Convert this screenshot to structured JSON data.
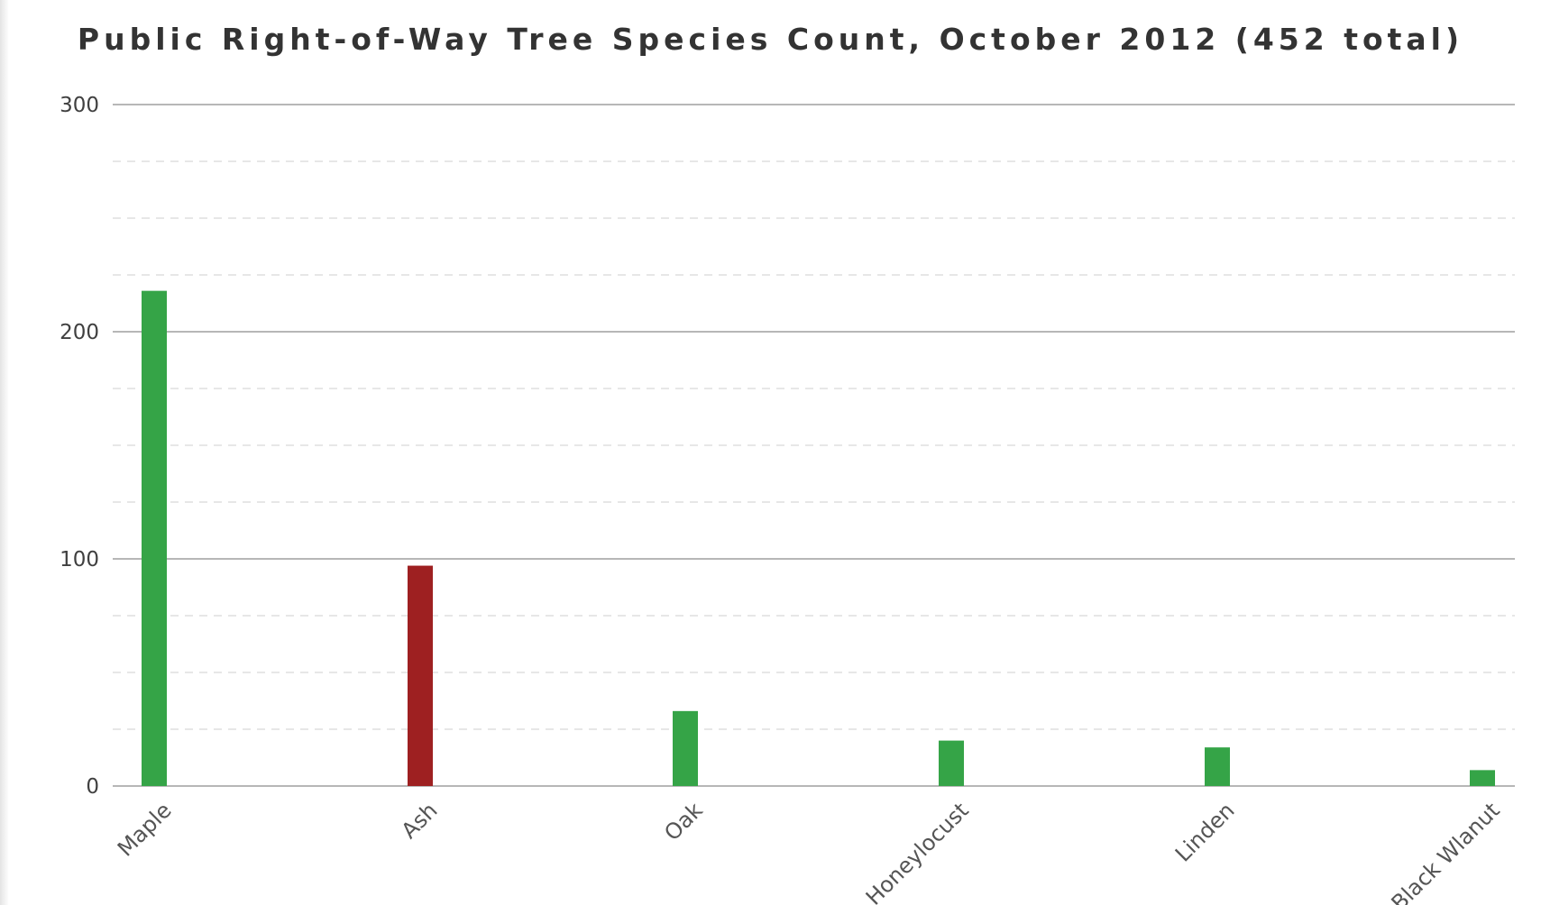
{
  "chart_data": {
    "type": "bar",
    "title": "Public Right-of-Way Tree Species Count, October 2012 (452 total)",
    "categories": [
      "Maple",
      "Ash",
      "Oak",
      "Honeylocust",
      "Linden",
      "Black Wlanut"
    ],
    "values": [
      218,
      97,
      33,
      20,
      17,
      7
    ],
    "bar_colors": [
      "#35a447",
      "#9e2021",
      "#35a447",
      "#35a447",
      "#35a447",
      "#35a447"
    ],
    "ylim": [
      0,
      300
    ],
    "yticks": [
      "0",
      "100",
      "200",
      "300"
    ],
    "xlabel": "",
    "ylabel": "",
    "grid": true,
    "legend": "none"
  }
}
